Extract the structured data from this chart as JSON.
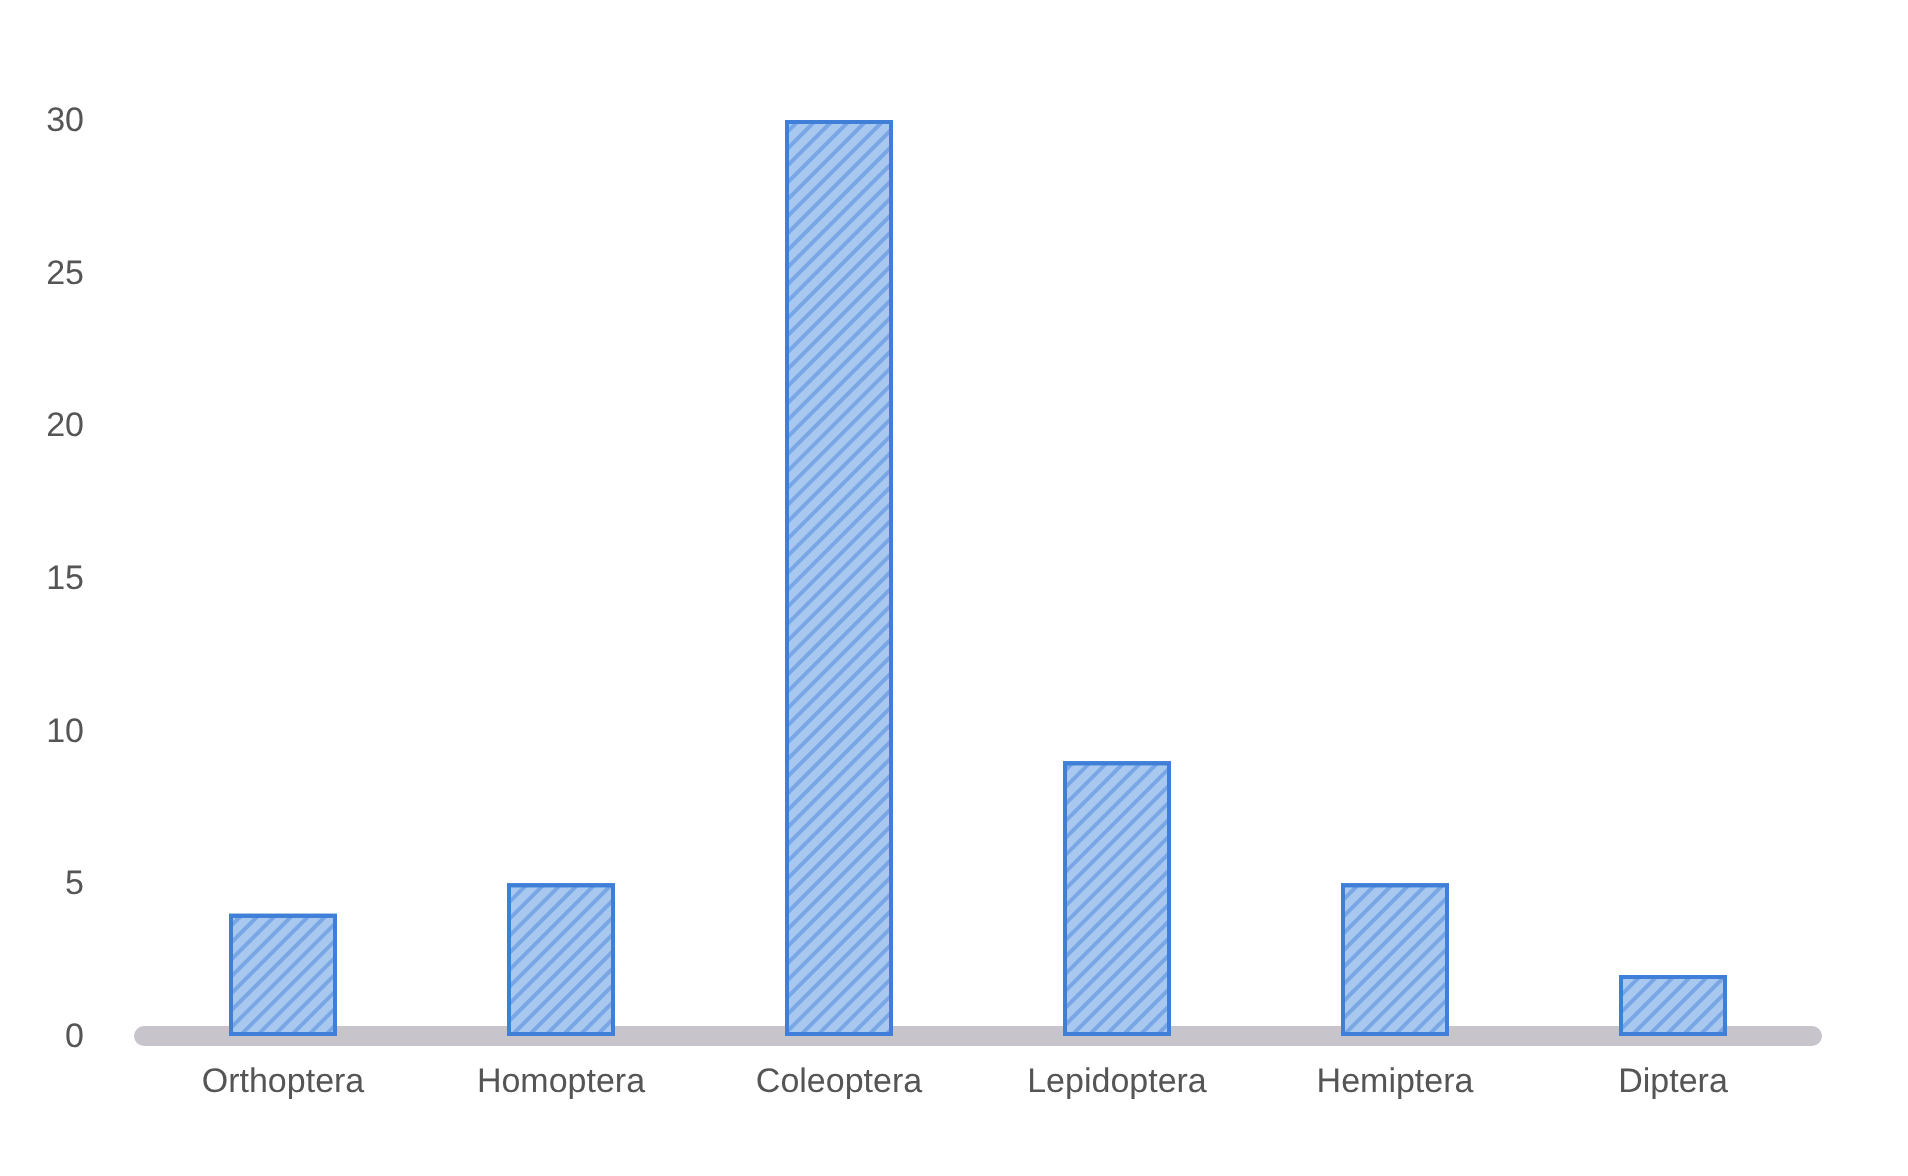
{
  "chart_data": {
    "type": "bar",
    "categories": [
      "Orthoptera",
      "Homoptera",
      "Coleoptera",
      "Lepidoptera",
      "Hemiptera",
      "Diptera"
    ],
    "values": [
      4,
      5,
      30,
      9,
      5,
      2
    ],
    "color": "#a9c8f0",
    "ylim": [
      0,
      30
    ],
    "yticks": [
      0,
      5,
      10,
      15,
      20,
      25,
      30
    ],
    "grid": false
  }
}
